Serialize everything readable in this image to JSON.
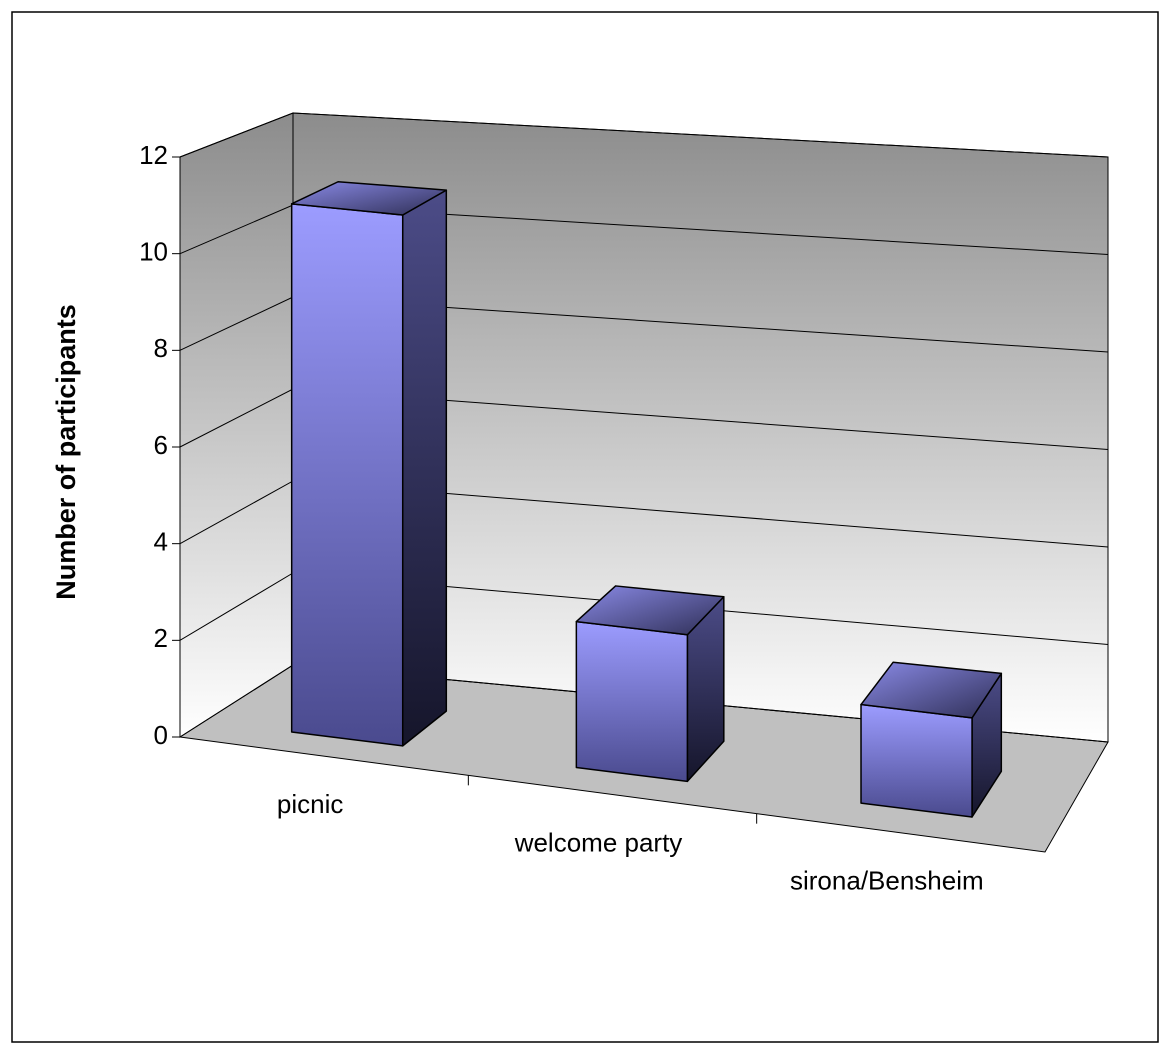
{
  "chart_data": {
    "type": "bar3d",
    "y_label": "Number of participants",
    "categories": [
      "picnic",
      "welcome party",
      "sirona/Bensheim"
    ],
    "values": [
      11,
      3,
      2
    ],
    "color": "#9999ff",
    "ylim": [
      0,
      12
    ],
    "yticks": [
      0,
      2,
      4,
      6,
      8,
      10,
      12
    ],
    "grid": true
  }
}
